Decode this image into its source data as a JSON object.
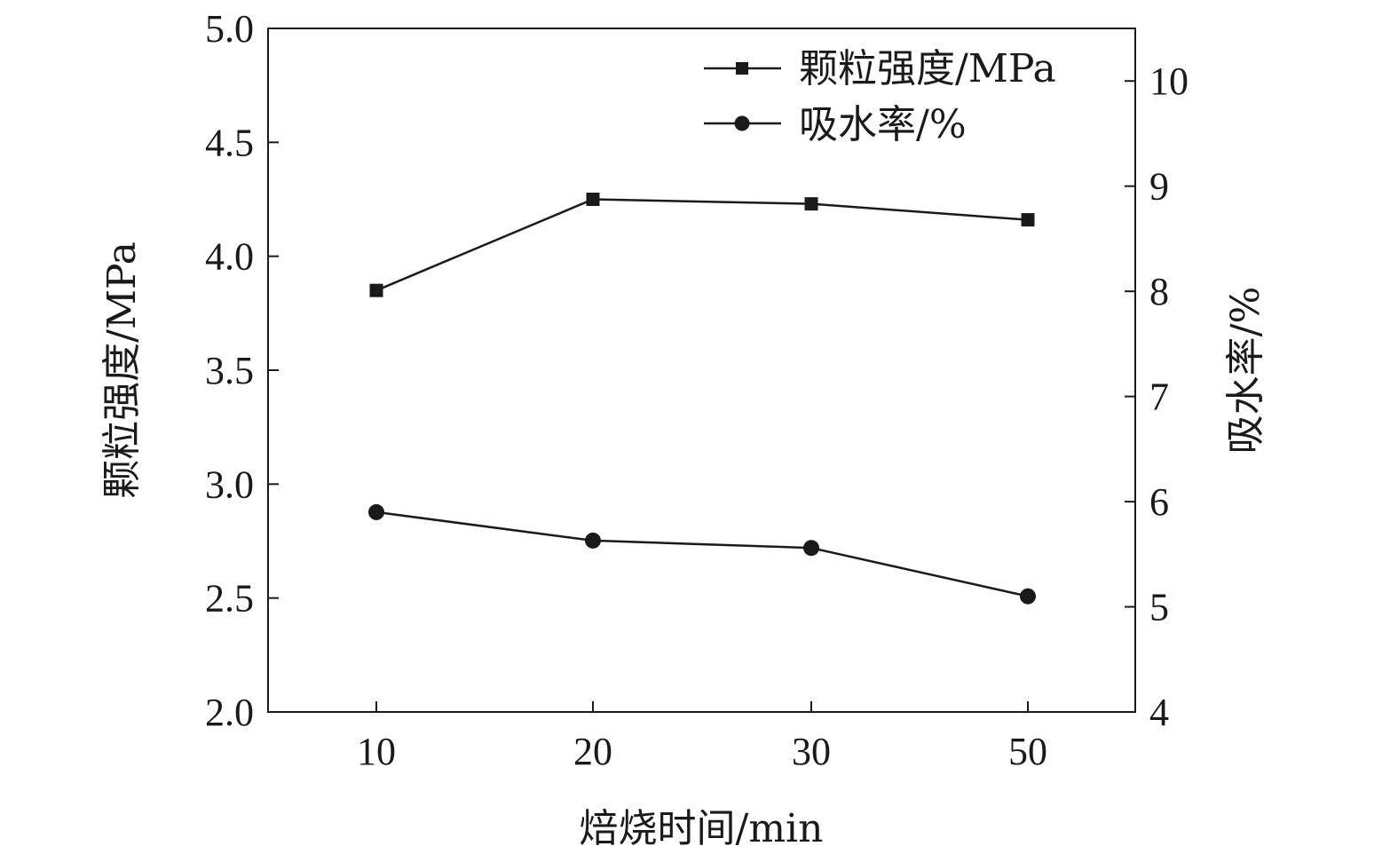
{
  "chart_data": {
    "type": "line",
    "title": "",
    "xlabel": "焙烧时间/min",
    "ylabel_left": "颗粒强度/MPa",
    "ylabel_right": "吸水率/%",
    "categories": [
      "10",
      "20",
      "30",
      "50"
    ],
    "ylim_left": [
      2.0,
      5.0
    ],
    "ylim_right": [
      4,
      10.5
    ],
    "yticks_left": [
      "2.0",
      "2.5",
      "3.0",
      "3.5",
      "4.0",
      "4.5",
      "5.0"
    ],
    "yticks_right": [
      "4",
      "5",
      "6",
      "7",
      "8",
      "9",
      "10"
    ],
    "grid": false,
    "legend_position": "top-right",
    "series": [
      {
        "name": "颗粒强度/MPa",
        "axis": "left",
        "marker": "square",
        "values": [
          3.85,
          4.25,
          4.23,
          4.16
        ]
      },
      {
        "name": "吸水率/%",
        "axis": "right",
        "marker": "circle",
        "values": [
          5.9,
          5.63,
          5.56,
          5.1
        ]
      }
    ],
    "colors": {
      "line": "#1a1a1a"
    }
  }
}
